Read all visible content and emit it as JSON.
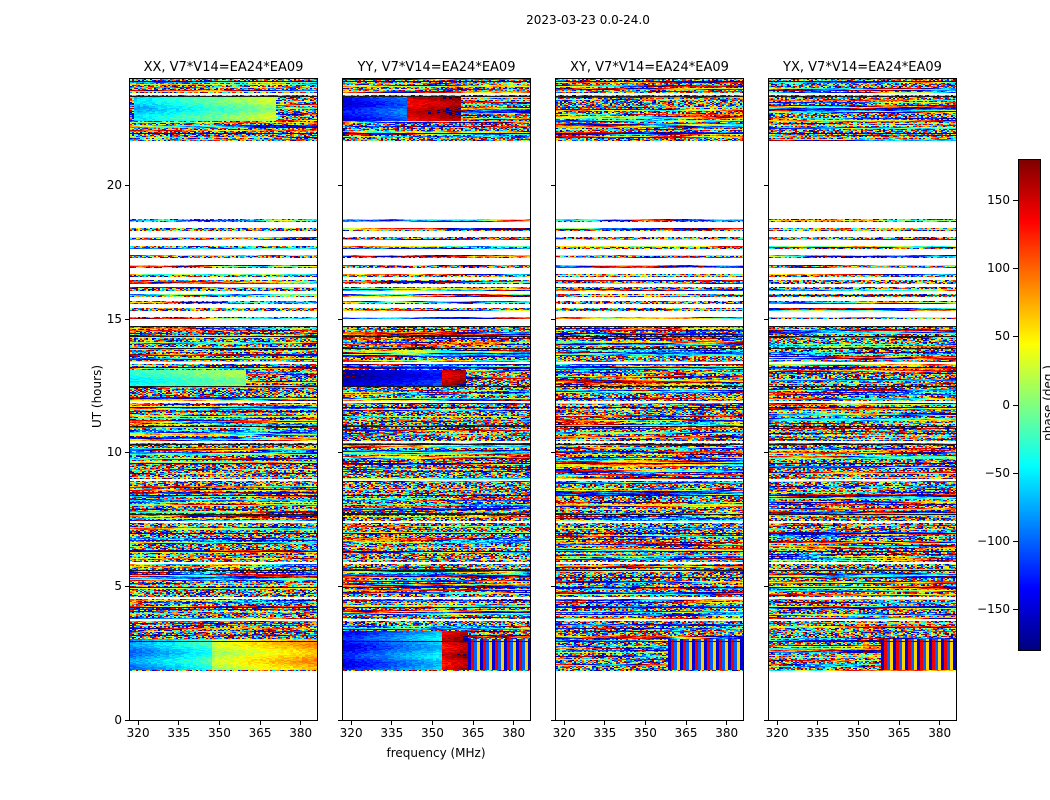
{
  "chart_data": {
    "type": "heatmap",
    "title": "2023-03-23 0.0-24.0",
    "panels": [
      "XX, V7*V14=EA24*EA09",
      "YY, V7*V14=EA24*EA09",
      "XY, V7*V14=EA24*EA09",
      "YX, V7*V14=EA24*EA09"
    ],
    "xlabel": "frequency (MHz)",
    "ylabel": "UT (hours)",
    "x_range": [
      317,
      386
    ],
    "x_ticks": [
      320,
      335,
      350,
      365,
      380
    ],
    "y_range": [
      0,
      24
    ],
    "y_ticks": [
      0,
      5,
      10,
      15,
      20
    ],
    "colorbar": {
      "label": "phase (deg.)",
      "range": [
        -180,
        180
      ],
      "ticks": [
        -150,
        -100,
        -50,
        0,
        50,
        100,
        150
      ],
      "colormap": "jet"
    },
    "time_segments": [
      {
        "t0": 1.85,
        "t1": 3.72,
        "kind": "block"
      },
      {
        "t0": 3.78,
        "t1": 14.75,
        "kind": "block"
      },
      {
        "t0": 15.0,
        "t1": 15.1,
        "kind": "block"
      },
      {
        "t0": 15.3,
        "t1": 16.6,
        "kind": "striped",
        "period": 0.26,
        "duty": 0.55
      },
      {
        "t0": 16.6,
        "t1": 18.9,
        "kind": "striped",
        "period": 0.34,
        "duty": 0.33
      },
      {
        "t0": 21.68,
        "t1": 24.0,
        "kind": "block"
      }
    ],
    "thin_gaps": [
      4.57,
      5.87,
      7.42,
      8.97,
      10.42,
      11.92,
      13.37,
      23.45
    ],
    "scan_lines": [
      2.95,
      3.72,
      4.2,
      4.95,
      5.6,
      6.3,
      7.0,
      7.7,
      8.4,
      9.6,
      10.3,
      11.0,
      11.7,
      12.5,
      13.2,
      13.9,
      14.35,
      14.73,
      21.95,
      23.35,
      23.9
    ],
    "features": [
      {
        "panel": 0,
        "t": [
          22.45,
          23.38
        ],
        "x": [
          0.02,
          0.78
        ],
        "mode": "smooth",
        "v0": -65,
        "v1": 20
      },
      {
        "panel": 0,
        "t": [
          12.55,
          13.12
        ],
        "x": [
          0.0,
          0.62
        ],
        "mode": "smooth",
        "v0": -40,
        "v1": 10
      },
      {
        "panel": 0,
        "t": [
          1.9,
          3.05
        ],
        "x": [
          0.44,
          1.0
        ],
        "mode": "smooth",
        "v0": 20,
        "v1": 80
      },
      {
        "panel": 0,
        "t": [
          1.9,
          3.05
        ],
        "x": [
          0.0,
          0.44
        ],
        "mode": "smooth",
        "v0": -90,
        "v1": -25
      },
      {
        "panel": 1,
        "t": [
          22.45,
          23.38
        ],
        "x": [
          0.0,
          0.34
        ],
        "mode": "smooth",
        "v0": -140,
        "v1": -95
      },
      {
        "panel": 1,
        "t": [
          22.45,
          23.38
        ],
        "x": [
          0.34,
          0.63
        ],
        "mode": "smooth",
        "v0": 145,
        "v1": 175
      },
      {
        "panel": 1,
        "t": [
          12.55,
          13.12
        ],
        "x": [
          0.0,
          0.53
        ],
        "mode": "smooth",
        "v0": -165,
        "v1": -120
      },
      {
        "panel": 1,
        "t": [
          12.55,
          13.12
        ],
        "x": [
          0.53,
          0.66
        ],
        "mode": "smooth",
        "v0": 150,
        "v1": 172
      },
      {
        "panel": 1,
        "t": [
          1.9,
          3.35
        ],
        "x": [
          0.0,
          0.53
        ],
        "mode": "smooth",
        "v0": -135,
        "v1": -55
      },
      {
        "panel": 1,
        "t": [
          1.9,
          3.35
        ],
        "x": [
          0.53,
          0.67
        ],
        "mode": "smooth",
        "v0": 140,
        "v1": 172
      },
      {
        "panel": 1,
        "t": [
          1.9,
          3.05
        ],
        "x": [
          0.67,
          1.0
        ],
        "mode": "stripes"
      },
      {
        "panel": 2,
        "t": [
          1.9,
          3.05
        ],
        "x": [
          0.6,
          1.0
        ],
        "mode": "stripes"
      },
      {
        "panel": 3,
        "t": [
          1.9,
          3.05
        ],
        "x": [
          0.6,
          1.0
        ],
        "mode": "stripes"
      }
    ]
  }
}
